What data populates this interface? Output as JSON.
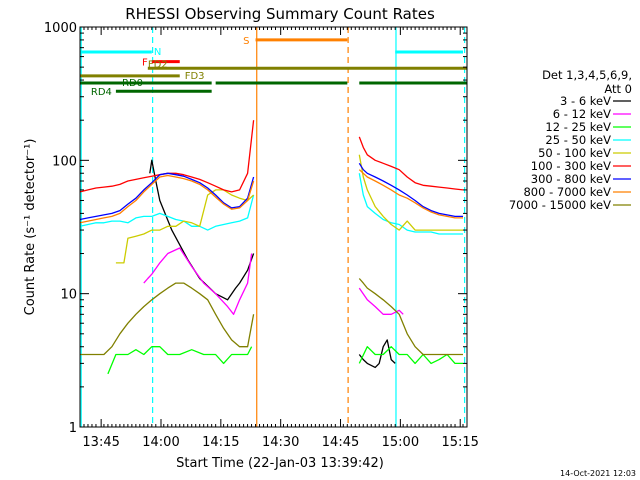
{
  "chart_data": {
    "type": "line",
    "title": "RHESSI Observing Summary Count Rates",
    "xlabel": "Start Time (22-Jan-03 13:39:42)",
    "ylabel": "Count Rate (s⁻¹ detector⁻¹)",
    "yscale": "log",
    "ylim": [
      1,
      1000
    ],
    "xlim_minutes": [
      0,
      97
    ],
    "x_ticks": [
      {
        "label": "13:45",
        "minutes": 5.3
      },
      {
        "label": "14:00",
        "minutes": 20.3
      },
      {
        "label": "14:15",
        "minutes": 35.3
      },
      {
        "label": "14:30",
        "minutes": 50.3
      },
      {
        "label": "14:45",
        "minutes": 65.3
      },
      {
        "label": "15:00",
        "minutes": 80.3
      },
      {
        "label": "15:15",
        "minutes": 95.3
      }
    ],
    "y_ticks": [
      {
        "label": "1",
        "value": 1
      },
      {
        "label": "10",
        "value": 10
      },
      {
        "label": "100",
        "value": 100
      },
      {
        "label": "1000",
        "value": 1000
      }
    ],
    "legend_header": [
      "Det 1,3,4,5,6,9,",
      "Att 0"
    ],
    "legend_position": "right",
    "series": [
      {
        "name": "3 - 6 keV",
        "color": "#000000",
        "x": [
          0,
          10,
          17,
          17.5,
          18,
          19,
          20,
          23,
          27,
          30,
          34,
          37,
          39,
          40,
          42,
          43.5
        ],
        "y": [
          null,
          null,
          null,
          80,
          100,
          70,
          50,
          30,
          18,
          13,
          10,
          9,
          11,
          12,
          15,
          20
        ],
        "x2": [
          70,
          71,
          72,
          74,
          75,
          76,
          77,
          78,
          79
        ],
        "y2": [
          3.5,
          3.2,
          3,
          2.8,
          3,
          4,
          4.5,
          3.2,
          3
        ]
      },
      {
        "name": "6 - 12 keV",
        "color": "#ff00ff",
        "x": [
          16,
          17,
          18,
          20,
          22,
          25,
          28,
          31,
          34,
          37,
          38.5,
          40,
          42,
          43
        ],
        "y": [
          12,
          13,
          14,
          17,
          20,
          22,
          16,
          12,
          10,
          8,
          7,
          9,
          12,
          20
        ],
        "x2": [
          70,
          72,
          74,
          76,
          78,
          80,
          81
        ],
        "y2": [
          11,
          9,
          8,
          7,
          7,
          7.5,
          7
        ]
      },
      {
        "name": "12 - 25 keV",
        "color": "#00ff00",
        "x": [
          7,
          9,
          12,
          14,
          16,
          18,
          20,
          22,
          25,
          28,
          31,
          34,
          36,
          38,
          40,
          42,
          43
        ],
        "y": [
          2.5,
          3.5,
          3.5,
          3.8,
          3.5,
          4,
          4,
          3.5,
          3.5,
          3.8,
          3.5,
          3.5,
          3,
          3.5,
          3.5,
          3.5,
          4
        ],
        "x2": [
          70,
          72,
          74,
          76,
          78,
          80,
          82,
          84,
          86,
          88,
          90,
          92,
          94,
          96
        ],
        "y2": [
          3,
          4,
          3.5,
          3.5,
          4,
          3.5,
          3.5,
          3,
          3.5,
          3,
          3.2,
          3.5,
          3,
          3
        ]
      },
      {
        "name": "25 - 50 keV",
        "color": "#00ffff",
        "x": [
          0,
          2,
          4,
          6,
          8,
          10,
          12,
          14,
          16,
          18,
          20,
          22,
          24,
          26,
          28,
          30,
          32,
          34,
          36,
          38,
          40,
          42,
          43.5
        ],
        "y": [
          32,
          33,
          34,
          34,
          35,
          35,
          34,
          37,
          38,
          38,
          40,
          38,
          36,
          35,
          32,
          32,
          30,
          32,
          33,
          34,
          35,
          37,
          55
        ],
        "x2": [
          70,
          71,
          72,
          74,
          76,
          78,
          80,
          82,
          84,
          86,
          88,
          90,
          92,
          94,
          96
        ],
        "y2": [
          80,
          55,
          45,
          40,
          36,
          34,
          33,
          30,
          29,
          29,
          29,
          28,
          28,
          28,
          28
        ]
      },
      {
        "name": "50 - 100 keV",
        "color": "#cccc00",
        "x": [
          9,
          11,
          12,
          14,
          16,
          18,
          20,
          22,
          24,
          26,
          28,
          30,
          32,
          34,
          36,
          38,
          40,
          42,
          43.5
        ],
        "y": [
          17,
          17,
          26,
          27,
          28,
          30,
          30,
          32,
          32,
          35,
          34,
          32,
          55,
          60,
          60,
          55,
          52,
          50,
          55
        ],
        "x2": [
          70,
          71,
          72,
          74,
          76,
          78,
          80,
          82,
          84,
          86,
          88,
          90,
          92,
          94,
          96
        ],
        "y2": [
          110,
          75,
          60,
          45,
          38,
          33,
          30,
          35,
          30,
          30,
          30,
          30,
          30,
          30,
          30
        ]
      },
      {
        "name": "100 - 300 keV",
        "color": "#ff0000",
        "x": [
          0,
          2,
          4,
          6,
          8,
          10,
          12,
          14,
          16,
          18,
          20,
          22,
          24,
          26,
          28,
          30,
          32,
          34,
          36,
          38,
          40,
          42,
          43.5
        ],
        "y": [
          58,
          60,
          62,
          63,
          64,
          66,
          70,
          72,
          74,
          76,
          78,
          80,
          80,
          78,
          75,
          72,
          68,
          64,
          60,
          58,
          60,
          80,
          200
        ],
        "x2": [
          70,
          71,
          72,
          74,
          76,
          78,
          80,
          82,
          84,
          86,
          88,
          90,
          92,
          94,
          96
        ],
        "y2": [
          150,
          125,
          110,
          100,
          95,
          90,
          85,
          75,
          68,
          65,
          64,
          63,
          62,
          61,
          60
        ]
      },
      {
        "name": "300 - 800 keV",
        "color": "#0000ff",
        "x": [
          0,
          2,
          4,
          6,
          8,
          10,
          12,
          14,
          16,
          18,
          20,
          22,
          24,
          26,
          28,
          30,
          32,
          34,
          36,
          38,
          40,
          42,
          43.5
        ],
        "y": [
          36,
          37,
          38,
          39,
          40,
          42,
          47,
          52,
          60,
          68,
          78,
          80,
          78,
          76,
          72,
          68,
          62,
          55,
          48,
          44,
          45,
          52,
          75
        ],
        "x2": [
          70,
          71,
          72,
          74,
          76,
          78,
          80,
          82,
          84,
          86,
          88,
          90,
          92,
          94,
          96
        ],
        "y2": [
          95,
          85,
          80,
          75,
          70,
          65,
          60,
          55,
          50,
          45,
          42,
          40,
          39,
          38,
          38
        ]
      },
      {
        "name": "800 - 7000 keV",
        "color": "#ff8000",
        "x": [
          0,
          2,
          4,
          6,
          8,
          10,
          12,
          14,
          16,
          18,
          20,
          22,
          24,
          26,
          28,
          30,
          32,
          34,
          36,
          38,
          40,
          42,
          43.5
        ],
        "y": [
          34,
          35,
          36,
          37,
          38,
          40,
          45,
          50,
          58,
          66,
          75,
          77,
          75,
          73,
          70,
          66,
          60,
          53,
          47,
          43,
          44,
          50,
          70
        ],
        "x2": [
          70,
          71,
          72,
          74,
          76,
          78,
          80,
          82,
          84,
          86,
          88,
          90,
          92,
          94,
          96
        ],
        "y2": [
          85,
          80,
          75,
          70,
          65,
          60,
          55,
          52,
          48,
          44,
          41,
          39,
          38,
          37,
          37
        ]
      },
      {
        "name": "7000 - 15000 keV",
        "color": "#808000",
        "x": [
          0,
          2,
          4,
          6,
          8,
          10,
          12,
          14,
          16,
          18,
          20,
          22,
          24,
          26,
          28,
          30,
          32,
          34,
          36,
          38,
          40,
          42,
          43.5
        ],
        "y": [
          3.5,
          3.5,
          3.5,
          3.5,
          4,
          5,
          6,
          7,
          8,
          9,
          10,
          11,
          12,
          12,
          11,
          10,
          9,
          7,
          5.5,
          4.5,
          4,
          4,
          7
        ],
        "x2": [
          70,
          71,
          72,
          74,
          76,
          78,
          80,
          82,
          84,
          86,
          88,
          90,
          92,
          94,
          96
        ],
        "y2": [
          13,
          12,
          11,
          10,
          9,
          8,
          7,
          5,
          4,
          3.5,
          3.5,
          3.5,
          3.5,
          3.5,
          3.5
        ]
      }
    ],
    "flags": [
      {
        "label": "N",
        "color": "#00ffff",
        "value": 650,
        "segments": [
          [
            0,
            18
          ],
          [
            79,
            96
          ]
        ]
      },
      {
        "label": "F",
        "color": "#ff0000",
        "value": 550,
        "segments": [
          [
            18,
            25
          ]
        ]
      },
      {
        "label": "FD2",
        "color": "#808000",
        "value": 490,
        "segments": [
          [
            17,
            97
          ]
        ]
      },
      {
        "label": "FD3",
        "color": "#808000",
        "value": 430,
        "segments": [
          [
            0,
            25
          ]
        ]
      },
      {
        "label": "RD0",
        "color": "#006600",
        "value": 380,
        "segments": [
          [
            0,
            33
          ],
          [
            34,
            67
          ],
          [
            70,
            97
          ]
        ]
      },
      {
        "label": "RD4",
        "color": "#006600",
        "value": 330,
        "segments": [
          [
            9,
            33
          ]
        ]
      },
      {
        "label": "S",
        "color": "#ff8000",
        "value": 800,
        "segments": [
          [
            44,
            67
          ]
        ]
      }
    ],
    "vertical_markers": [
      {
        "minutes": 0.3,
        "color": "#00ffff",
        "style": "solid"
      },
      {
        "minutes": 18.2,
        "color": "#00ffff",
        "style": "dashed"
      },
      {
        "minutes": 44.3,
        "color": "#ff8000",
        "style": "solid"
      },
      {
        "minutes": 67.2,
        "color": "#ff8000",
        "style": "dashed"
      },
      {
        "minutes": 79.2,
        "color": "#00ffff",
        "style": "solid"
      },
      {
        "minutes": 96.4,
        "color": "#00ffff",
        "style": "dashed"
      }
    ],
    "timestamp": "14-Oct-2021 12:03"
  }
}
